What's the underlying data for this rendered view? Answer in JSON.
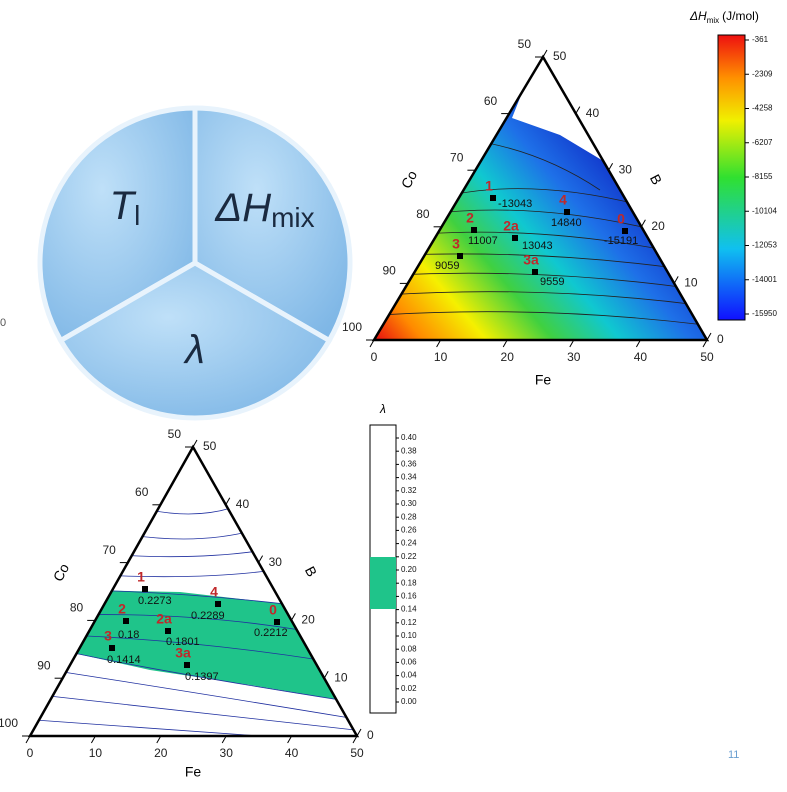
{
  "pie": {
    "labels": [
      {
        "main": "T",
        "sub": "l"
      },
      {
        "main": "ΔH",
        "sub": "mix"
      },
      {
        "main": "λ"
      }
    ]
  },
  "edge_label": "0",
  "enthalpy_plot": {
    "axis_labels": {
      "left": "Co",
      "right": "B",
      "bottom": "Fe"
    },
    "bottom_ticks": [
      "0",
      "10",
      "20",
      "30",
      "40",
      "50"
    ],
    "left_ticks": [
      "50",
      "60",
      "70",
      "80",
      "90",
      "100"
    ],
    "right_ticks": [
      "0",
      "10",
      "20",
      "30",
      "40",
      "50"
    ],
    "points": [
      {
        "id": "1",
        "value": "-13043"
      },
      {
        "id": "4",
        "value": "14840"
      },
      {
        "id": "0",
        "value": "-15191"
      },
      {
        "id": "2",
        "value": "11007"
      },
      {
        "id": "2a",
        "value": "13043"
      },
      {
        "id": "3",
        "value": "9059"
      },
      {
        "id": "3a",
        "value": "9559"
      }
    ],
    "colorbar": {
      "title_main": "ΔH",
      "title_sub": "mix",
      "title_unit": "(J/mol)",
      "ticks": [
        "-361",
        "-2309",
        "-4258",
        "-6207",
        "-8155",
        "-10104",
        "-12053",
        "-14001",
        "-15950"
      ]
    }
  },
  "lambda_plot": {
    "axis_labels": {
      "left": "Co",
      "right": "B",
      "bottom": "Fe"
    },
    "bottom_ticks": [
      "0",
      "10",
      "20",
      "30",
      "40",
      "50"
    ],
    "left_ticks": [
      "50",
      "60",
      "70",
      "80",
      "90",
      "100"
    ],
    "right_ticks": [
      "0",
      "10",
      "20",
      "30",
      "40",
      "50"
    ],
    "points": [
      {
        "id": "1",
        "value": "0.2273"
      },
      {
        "id": "4",
        "value": "0.2289"
      },
      {
        "id": "0",
        "value": "0.2212"
      },
      {
        "id": "2",
        "value": "0.18"
      },
      {
        "id": "2a",
        "value": "0.1801"
      },
      {
        "id": "3",
        "value": "0.1414"
      },
      {
        "id": "3a",
        "value": "0.1397"
      }
    ],
    "colorbar": {
      "title": "λ",
      "ticks": [
        "0.40",
        "0.38",
        "0.36",
        "0.34",
        "0.32",
        "0.30",
        "0.28",
        "0.26",
        "0.24",
        "0.22",
        "0.20",
        "0.18",
        "0.16",
        "0.14",
        "0.12",
        "0.10",
        "0.08",
        "0.06",
        "0.04",
        "0.02",
        "0.00"
      ]
    }
  },
  "page_number": "11"
}
